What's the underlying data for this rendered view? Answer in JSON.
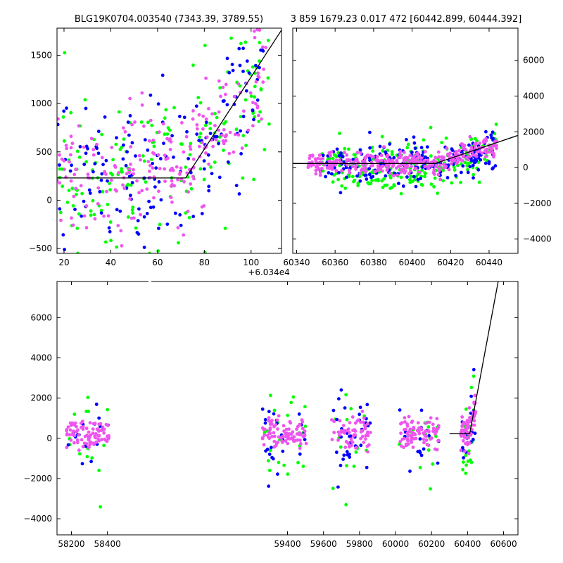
{
  "figure": {
    "title_left": "BLG19K0704.003540 (7343.39, 3789.55)",
    "title_right": "3 859 1679.23 0.017 472 [60442.899, 60444.392]"
  },
  "colors": {
    "green": "#00ff00",
    "blue": "#0000ff",
    "magenta": "#ee55ee",
    "model": "#000000",
    "axes": "#000000"
  },
  "chart_data": [
    {
      "type": "scatter",
      "name": "top-left",
      "title": "",
      "xlim": [
        17,
        113
      ],
      "ylim": [
        -550,
        1780
      ],
      "xticks": [
        20,
        40,
        60,
        80,
        100
      ],
      "xtick_labels": [
        "20",
        "40",
        "60",
        "80",
        "100"
      ],
      "x_offset_label": "+6.034e4",
      "yticks": [
        -500,
        0,
        500,
        1000,
        1500
      ],
      "ytick_labels": [
        "−500",
        "0",
        "500",
        "1000",
        "1500"
      ],
      "ytick_side": "left",
      "model_line": [
        [
          17,
          230
        ],
        [
          72,
          230
        ],
        [
          113,
          1760
        ]
      ],
      "series": [
        {
          "color": "green",
          "x_range": [
            17,
            108
          ],
          "y_center": 250,
          "y_spread": 450,
          "count": 180
        },
        {
          "color": "blue",
          "x_range": [
            17,
            108
          ],
          "y_center": 300,
          "y_spread": 380,
          "count": 160
        },
        {
          "color": "magenta",
          "x_range": [
            17,
            108
          ],
          "y_center": 300,
          "y_spread": 320,
          "count": 220
        }
      ]
    },
    {
      "type": "scatter",
      "name": "top-right",
      "title": "",
      "xlim": [
        60338,
        60455
      ],
      "ylim": [
        -4800,
        7800
      ],
      "xticks": [
        60340,
        60360,
        60380,
        60400,
        60420,
        60440
      ],
      "xtick_labels": [
        "60340",
        "60360",
        "60380",
        "60400",
        "60420",
        "60440"
      ],
      "yticks": [
        -4000,
        -2000,
        0,
        2000,
        4000,
        6000
      ],
      "ytick_labels": [
        "−4000",
        "−2000",
        "0",
        "2000",
        "4000",
        "6000"
      ],
      "ytick_side": "right",
      "model_line": [
        [
          60338,
          230
        ],
        [
          60412,
          230
        ],
        [
          60455,
          1800
        ]
      ],
      "series": [
        {
          "color": "green",
          "x_range": [
            60352,
            60444
          ],
          "y_center": 0,
          "y_spread": 700,
          "count": 220
        },
        {
          "color": "blue",
          "x_range": [
            60352,
            60444
          ],
          "y_center": 200,
          "y_spread": 600,
          "count": 220
        },
        {
          "color": "magenta",
          "x_range": [
            60346,
            60444
          ],
          "y_center": 250,
          "y_spread": 320,
          "count": 340
        }
      ]
    },
    {
      "type": "scatter",
      "name": "bottom",
      "title": "",
      "xlim": [
        58120,
        60680
      ],
      "ylim": [
        -4800,
        7800
      ],
      "xticks": [
        58200,
        58400,
        59400,
        59600,
        59800,
        60000,
        60200,
        60400,
        60600
      ],
      "xtick_labels": [
        "58200",
        "58400",
        "59400",
        "59600",
        "59800",
        "60000",
        "60200",
        "60400",
        "60600"
      ],
      "yticks": [
        -4000,
        -2000,
        0,
        2000,
        4000,
        6000
      ],
      "ytick_labels": [
        "−4000",
        "−2000",
        "0",
        "2000",
        "4000",
        "6000"
      ],
      "ytick_side": "left",
      "model_line": [
        [
          60300,
          230
        ],
        [
          60412,
          230
        ],
        [
          60570,
          7800
        ]
      ],
      "seasons": [
        [
          58170,
          58410
        ],
        [
          59260,
          59505
        ],
        [
          59640,
          59865
        ],
        [
          60020,
          60240
        ],
        [
          60360,
          60445
        ]
      ],
      "series": [
        {
          "color": "green",
          "y_center": -200,
          "y_spread": 1200,
          "count": 90
        },
        {
          "color": "blue",
          "y_center": 0,
          "y_spread": 900,
          "count": 110
        },
        {
          "color": "magenta",
          "y_center": 250,
          "y_spread": 380,
          "count": 380
        }
      ]
    }
  ]
}
